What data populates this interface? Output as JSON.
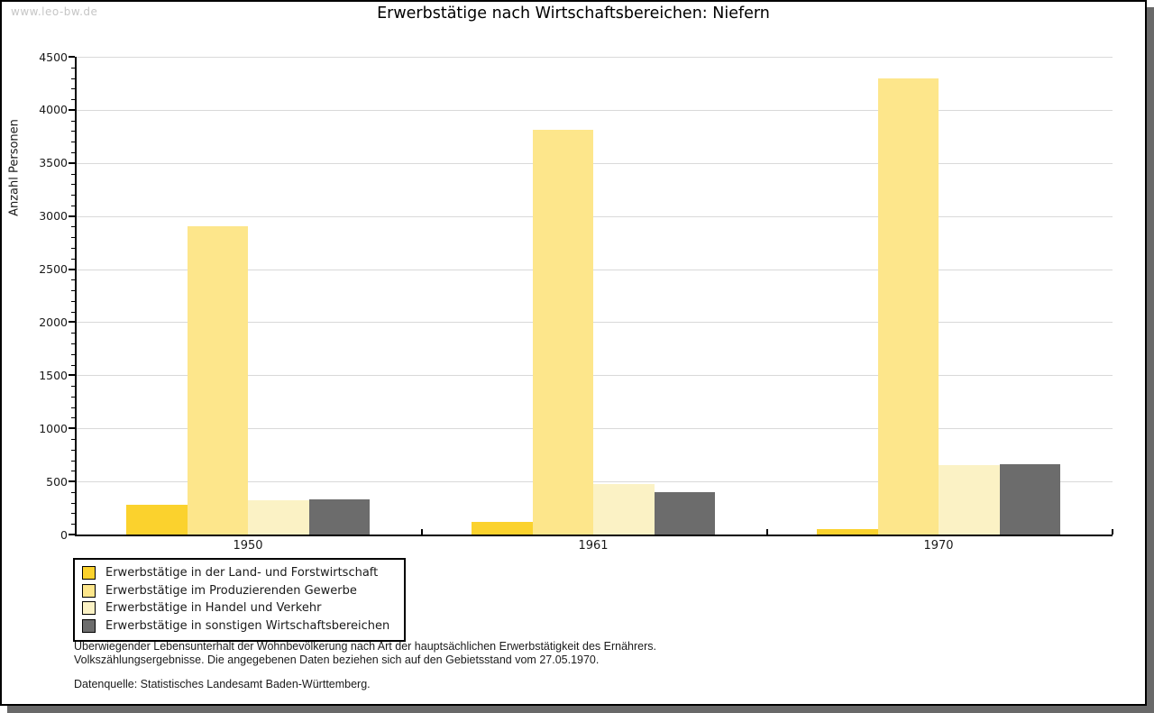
{
  "watermark": "www.leo-bw.de",
  "title": "Erwerbstätige nach Wirtschaftsbereichen: Niefern",
  "chart_data": {
    "type": "bar",
    "title": "Erwerbstätige nach Wirtschaftsbereichen: Niefern",
    "xlabel": "",
    "ylabel": "Anzahl Personen",
    "ylim": [
      0,
      4500
    ],
    "ytick_step": 500,
    "ytick_minor_step": 100,
    "grid": true,
    "legend_position": "bottom-left",
    "categories": [
      "1950",
      "1961",
      "1970"
    ],
    "series": [
      {
        "name": "Erwerbstätige in der Land- und Forstwirtschaft",
        "color": "#fbd22d",
        "values": [
          280,
          120,
          50
        ]
      },
      {
        "name": "Erwerbstätige im Produzierenden Gewerbe",
        "color": "#fde68b",
        "values": [
          2900,
          3810,
          4300
        ]
      },
      {
        "name": "Erwerbstätige in Handel und Verkehr",
        "color": "#fbf2c5",
        "values": [
          320,
          475,
          655
        ]
      },
      {
        "name": "Erwerbstätige in sonstigen Wirtschaftsbereichen",
        "color": "#6c6c6c",
        "values": [
          335,
          400,
          665
        ]
      }
    ]
  },
  "footnotes": {
    "line1": "Überwiegender Lebensunterhalt der Wohnbevölkerung nach Art der hauptsächlichen Erwerbstätigkeit des Ernährers.",
    "line2": "Volkszählungsergebnisse. Die angegebenen Daten beziehen sich auf den Gebietsstand vom 27.05.1970.",
    "source": "Datenquelle: Statistisches Landesamt Baden-Württemberg."
  },
  "colors": {
    "gridline": "#d9d9d9",
    "axis": "#000000",
    "shadow": "#696969",
    "watermark": "#c6c6c6",
    "text": "#1a1a1a"
  }
}
